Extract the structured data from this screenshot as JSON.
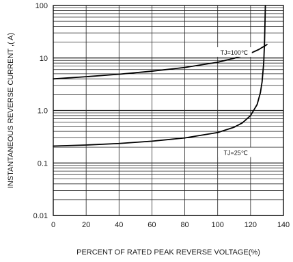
{
  "chart_data": {
    "type": "line",
    "title": "",
    "xlabel": "PERCENT OF RATED PEAK REVERSE VOLTAGE(%)",
    "ylabel": "INSTANTANEOUS REVERSE CURRENT ,( A)",
    "xlim": [
      0,
      140
    ],
    "ylim": [
      0.01,
      100
    ],
    "yscale": "log",
    "grid": true,
    "x_ticks": [
      0,
      20,
      40,
      60,
      80,
      100,
      120,
      140
    ],
    "x_tick_labels": [
      "0",
      "20",
      "40",
      "60",
      "80",
      "100",
      "120",
      "140"
    ],
    "y_ticks": [
      0.01,
      0.1,
      1,
      10,
      100
    ],
    "y_tick_labels": [
      "0.01",
      "0.1",
      "1.0",
      "10",
      "100"
    ],
    "series": [
      {
        "name": "TJ=100℃",
        "x": [
          0,
          20,
          40,
          60,
          80,
          100,
          110,
          120,
          125,
          130
        ],
        "y": [
          4.0,
          4.4,
          4.9,
          5.6,
          6.6,
          8.3,
          9.9,
          12.3,
          14.5,
          18.0
        ]
      },
      {
        "name": "TJ=25℃",
        "x": [
          0,
          20,
          40,
          60,
          80,
          100,
          110,
          115,
          120,
          124,
          126,
          127,
          128,
          128.5,
          128.8,
          129.0
        ],
        "y": [
          0.21,
          0.22,
          0.235,
          0.26,
          0.3,
          0.38,
          0.48,
          0.58,
          0.8,
          1.3,
          2.2,
          3.5,
          8,
          20,
          50,
          100
        ]
      }
    ]
  }
}
